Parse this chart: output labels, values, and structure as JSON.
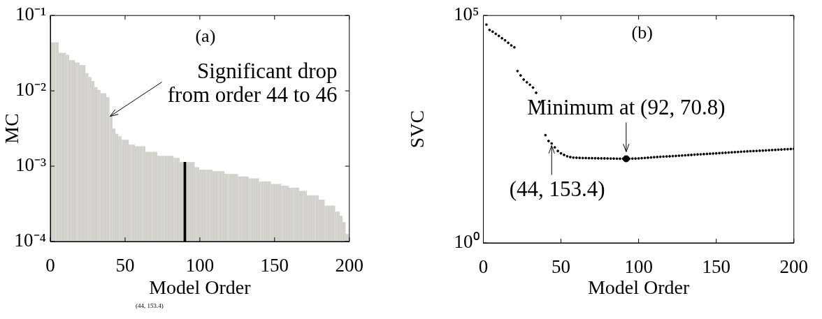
{
  "chart_data": [
    {
      "type": "bar",
      "title": "(a)",
      "xlabel": "Model Order",
      "ylabel": "MC",
      "log": "y",
      "x": [
        1,
        2,
        3,
        4,
        5,
        6,
        7,
        8,
        9,
        10,
        11,
        12,
        13,
        14,
        15,
        16,
        17,
        18,
        19,
        20,
        21,
        22,
        23,
        24,
        25,
        26,
        27,
        28,
        29,
        30,
        31,
        32,
        33,
        34,
        35,
        36,
        37,
        38,
        39,
        40,
        41,
        42,
        43,
        44,
        45,
        46,
        47,
        48,
        49,
        50,
        51,
        52,
        53,
        54,
        55,
        56,
        57,
        58,
        59,
        60,
        61,
        62,
        63,
        64,
        65,
        66,
        67,
        68,
        69,
        70,
        71,
        72,
        73,
        74,
        75,
        76,
        77,
        78,
        79,
        80,
        81,
        82,
        83,
        84,
        85,
        86,
        87,
        88,
        89,
        90,
        91,
        92,
        93,
        94,
        95,
        96,
        97,
        98,
        99,
        100,
        101,
        102,
        103,
        104,
        105,
        106,
        107,
        108,
        109,
        110,
        111,
        112,
        113,
        114,
        115,
        116,
        117,
        118,
        119,
        120,
        121,
        122,
        123,
        124,
        125,
        126,
        127,
        128,
        129,
        130,
        131,
        132,
        133,
        134,
        135,
        136,
        137,
        138,
        139,
        140,
        141,
        142,
        143,
        144,
        145,
        146,
        147,
        148,
        149,
        150,
        151,
        152,
        153,
        154,
        155,
        156,
        157,
        158,
        159,
        160,
        161,
        162,
        163,
        164,
        165,
        166,
        167,
        168,
        169,
        170,
        171,
        172,
        173,
        174,
        175,
        176,
        177,
        178,
        179,
        180,
        181,
        182,
        183,
        184,
        185,
        186,
        187,
        188,
        189,
        190,
        191,
        192,
        193,
        194,
        195,
        196,
        197,
        198,
        199,
        200
      ],
      "series": [
        {
          "color": "#cdcbc6",
          "values": [
            0.044,
            0.044,
            0.044,
            0.044,
            0.044,
            0.032,
            0.032,
            0.032,
            0.032,
            0.032,
            0.03,
            0.03,
            0.0256,
            0.0256,
            0.0256,
            0.0256,
            0.0237,
            0.0237,
            0.0237,
            0.022,
            0.022,
            0.022,
            0.022,
            0.0172,
            0.0172,
            0.0152,
            0.0152,
            0.0135,
            0.0135,
            0.0112,
            0.0112,
            0.0103,
            0.0103,
            0.0093,
            0.0093,
            0.0093,
            0.0093,
            0.0082,
            0.0082,
            0.0046,
            0.0046,
            0.00315,
            0.00315,
            0.0027,
            0.0027,
            0.0025,
            0.0025,
            0.00224,
            0.00224,
            0.00224,
            0.00224,
            0.00224,
            0.00194,
            0.00194,
            0.00194,
            0.00194,
            0.00184,
            0.00184,
            0.00184,
            0.00184,
            0.00184,
            0.00184,
            0.00184,
            0.00155,
            0.00155,
            0.00155,
            0.00155,
            0.00155,
            0.00155,
            0.00155,
            0.00155,
            0.00137,
            0.00137,
            0.00137,
            0.00137,
            0.00137,
            0.00137,
            0.00137,
            0.00137,
            0.00137,
            0.00137,
            0.00137,
            0.00129,
            0.00129,
            0.00129,
            0.00129,
            0.00113,
            0.00113,
            0.00113,
            0.00113,
            0.00113,
            0.00113,
            0.00113,
            0.00113,
            0.00113,
            0.00113,
            0.00097,
            0.00097,
            0.00097,
            0.0009,
            0.0009,
            0.0009,
            0.0009,
            0.0009,
            0.0009,
            0.0009,
            0.0009,
            0.0009,
            0.00086,
            0.00086,
            0.00086,
            0.00086,
            0.00086,
            0.00086,
            0.00086,
            0.00086,
            0.00079,
            0.00079,
            0.00079,
            0.00079,
            0.00079,
            0.00079,
            0.00079,
            0.00079,
            0.00079,
            0.00073,
            0.00073,
            0.00073,
            0.00073,
            0.00073,
            0.00073,
            0.00073,
            0.00069,
            0.00069,
            0.00069,
            0.00069,
            0.00069,
            0.00069,
            0.00069,
            0.00063,
            0.00063,
            0.00063,
            0.00063,
            0.00063,
            0.00063,
            0.00063,
            0.00063,
            0.00058,
            0.00058,
            0.00058,
            0.00058,
            0.00058,
            0.00058,
            0.00058,
            0.00055,
            0.00055,
            0.00055,
            0.00055,
            0.00055,
            0.00052,
            0.00052,
            0.00052,
            0.00052,
            0.00052,
            0.00052,
            0.00052,
            0.00047,
            0.00047,
            0.00047,
            0.00047,
            0.00047,
            0.00041,
            0.00041,
            0.00041,
            0.00041,
            0.00041,
            0.00041,
            0.00041,
            0.00041,
            0.00036,
            0.00036,
            0.00036,
            0.00036,
            0.0003,
            0.0003,
            0.0003,
            0.0003,
            0.0003,
            0.0003,
            0.0003,
            0.00025,
            0.00025,
            0.00025,
            0.00022,
            0.00022,
            0.00018,
            0.00018,
            0.000126,
            0.000126,
            0.00011
          ]
        },
        {
          "type": "bar",
          "color": "#000000",
          "x": [
            90
          ],
          "values": [
            0.00113
          ]
        }
      ],
      "xlim": [
        0,
        200
      ],
      "xticks": [
        0,
        50,
        100,
        150,
        200
      ],
      "ylim": [
        0.0001,
        0.1
      ],
      "yticks": [
        {
          "value": 0.0001,
          "label": "10⁻⁴"
        },
        {
          "value": 0.001,
          "label": "10⁻³"
        },
        {
          "value": 0.01,
          "label": "10⁻²"
        },
        {
          "value": 0.1,
          "label": "10⁻¹"
        }
      ],
      "annotations": [
        {
          "text": "Significant drop\nfrom order 44 to 46",
          "x": 40,
          "y": 0.0046
        },
        "(44, 153.4)"
      ]
    },
    {
      "type": "scatter",
      "title": "(b)",
      "xlabel": "Model Order",
      "ylabel": "SVC",
      "log": "y",
      "marker": "circle",
      "series": [
        {
          "color": "#000000",
          "x": [
            2,
            4,
            6,
            8,
            10,
            12,
            14,
            16,
            18,
            20,
            22,
            24,
            26,
            28,
            30,
            32,
            34,
            36,
            40,
            42,
            44,
            46,
            48,
            50,
            52,
            54,
            56,
            58,
            60,
            62,
            64,
            66,
            68,
            70,
            72,
            74,
            76,
            78,
            80,
            82,
            84,
            86,
            88,
            90,
            94,
            96,
            98,
            100,
            102,
            104,
            106,
            108,
            110,
            112,
            114,
            116,
            118,
            120,
            122,
            124,
            126,
            128,
            130,
            132,
            134,
            136,
            138,
            140,
            142,
            144,
            146,
            148,
            150,
            152,
            154,
            156,
            158,
            160,
            162,
            164,
            166,
            168,
            170,
            172,
            174,
            176,
            178,
            180,
            182,
            184,
            186,
            188,
            190,
            192,
            194,
            196,
            198,
            200
          ],
          "values": [
            63000,
            48000,
            44000,
            39500,
            35600,
            31600,
            28500,
            25000,
            22000,
            20000,
            6000,
            4800,
            3900,
            3400,
            3000,
            2600,
            2000,
            1260,
            234,
            174,
            153.4,
            126,
            105,
            93,
            86,
            80,
            77,
            75,
            74.5,
            74,
            73.6,
            73.3,
            73,
            72.8,
            72.6,
            72.4,
            72.2,
            72,
            71.8,
            71.6,
            71.4,
            71.2,
            71,
            70.9,
            71,
            71.3,
            71.7,
            72,
            73,
            73.8,
            74.7,
            75.6,
            76.5,
            77.4,
            78.2,
            79,
            79.6,
            80,
            80.9,
            81.7,
            82.6,
            83.5,
            84.3,
            85.2,
            86,
            87,
            88,
            88.8,
            89.6,
            90.5,
            91.4,
            92.2,
            93,
            94,
            95,
            96,
            97,
            98,
            99,
            99.8,
            101,
            102,
            103,
            104,
            104.7,
            105.5,
            106.3,
            107,
            108,
            109,
            110,
            111,
            112,
            113,
            114,
            115,
            116,
            117
          ]
        },
        {
          "color": "#000000",
          "x": [
            92
          ],
          "values": [
            70.8
          ]
        }
      ],
      "xlim": [
        0,
        200
      ],
      "xticks": [
        0,
        50,
        100,
        150,
        200
      ],
      "ylim": [
        1,
        100000
      ],
      "yticks": [
        {
          "value": 1,
          "label": "10⁰"
        },
        {
          "value": 100000,
          "label": "10⁵"
        }
      ],
      "annotations": [
        {
          "text": "Minimum at (92, 70.8)",
          "x": 92,
          "y": 70.8
        },
        {
          "text": "(44, 153.4)",
          "x": 44,
          "y": 153.4
        }
      ]
    }
  ]
}
